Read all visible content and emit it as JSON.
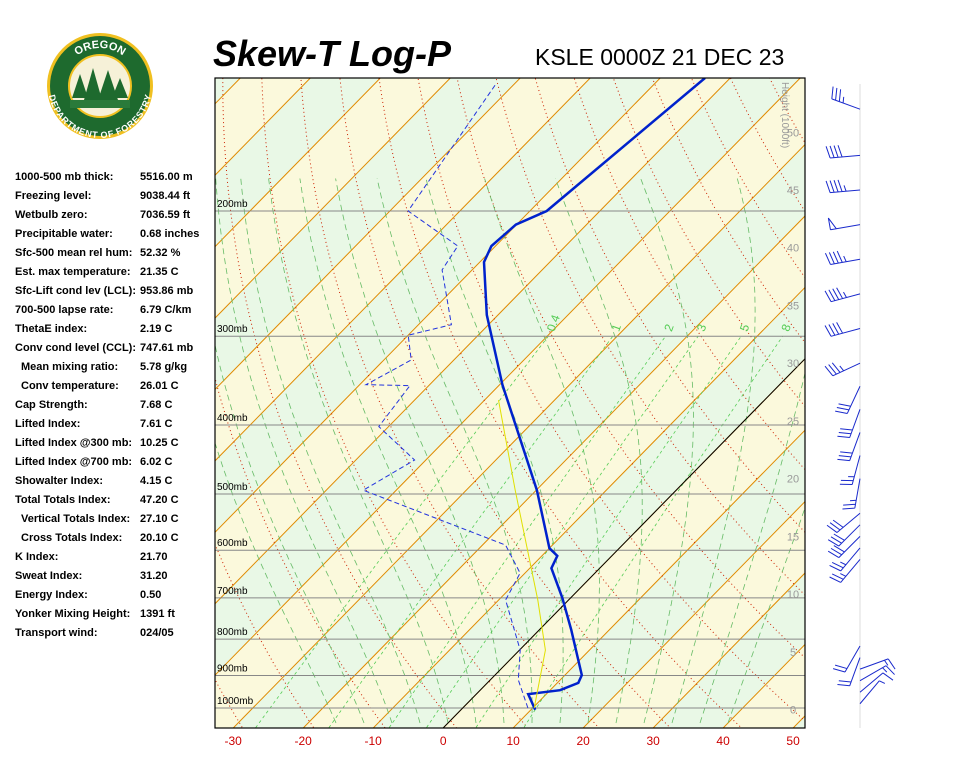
{
  "logo": {
    "top": "OREGON",
    "bottom": "DEPARTMENT OF FORESTRY"
  },
  "stats": [
    {
      "label": "1000-500 mb thick:",
      "value": "5516.00 m"
    },
    {
      "label": "Freezing level:",
      "value": "9038.44 ft"
    },
    {
      "label": "Wetbulb zero:",
      "value": "7036.59 ft"
    },
    {
      "label": "Precipitable water:",
      "value": "0.68 inches"
    },
    {
      "label": "Sfc-500 mean rel hum:",
      "value": "52.32 %"
    },
    {
      "label": "Est. max temperature:",
      "value": "21.35 C"
    },
    {
      "label": "Sfc-Lift cond lev (LCL):",
      "value": "953.86 mb"
    },
    {
      "label": "700-500 lapse rate:",
      "value": "6.79 C/km"
    },
    {
      "label": "ThetaE index:",
      "value": "2.19 C"
    },
    {
      "label": "Conv cond level (CCL):",
      "value": "747.61 mb"
    },
    {
      "label": "Mean mixing ratio:",
      "value": "5.78 g/kg"
    },
    {
      "label": "Conv temperature:",
      "value": "26.01 C"
    },
    {
      "label": "Cap Strength:",
      "value": "7.68 C"
    },
    {
      "label": "Lifted Index:",
      "value": "7.61 C"
    },
    {
      "label": "Lifted Index @300 mb:",
      "value": "10.25 C"
    },
    {
      "label": "Lifted Index @700 mb:",
      "value": "6.02 C"
    },
    {
      "label": "Showalter Index:",
      "value": "4.15 C"
    },
    {
      "label": "Total Totals Index:",
      "value": "47.20 C"
    },
    {
      "label": "Vertical Totals Index:",
      "value": "27.10 C"
    },
    {
      "label": "Cross Totals Index:",
      "value": "20.10 C"
    },
    {
      "label": "K Index:",
      "value": "21.70"
    },
    {
      "label": "Sweat Index:",
      "value": "31.20"
    },
    {
      "label": "Energy Index:",
      "value": "0.50"
    },
    {
      "label": "Yonker Mixing Height:",
      "value": "1391 ft"
    },
    {
      "label": "Transport wind:",
      "value": "024/05"
    }
  ],
  "chart_data": {
    "type": "skewt",
    "title": "Skew-T Log-P",
    "subtitle": "KSLE 0000Z 21 DEC 23",
    "xlim": [
      -32.6,
      51.7
    ],
    "xticks": [
      -30,
      -20,
      -10,
      0,
      10,
      20,
      30,
      40,
      50
    ],
    "ylim": [
      1067,
      130
    ],
    "log_scale": true,
    "yticks": [
      {
        "value": 200,
        "label": "200mb"
      },
      {
        "value": 300,
        "label": "300mb"
      },
      {
        "value": 400,
        "label": "400mb"
      },
      {
        "value": 500,
        "label": "500mb"
      },
      {
        "value": 600,
        "label": "600mb"
      },
      {
        "value": 700,
        "label": "700mb"
      },
      {
        "value": 800,
        "label": "800mb"
      },
      {
        "value": 900,
        "label": "900mb"
      },
      {
        "value": 1000,
        "label": "1000mb"
      }
    ],
    "height_label": "Height (1000ft)",
    "height_lim": [
      -1.6,
      54.7
    ],
    "height_ticks": [
      0,
      5,
      10,
      15,
      20,
      25,
      30,
      35,
      40,
      45,
      50
    ],
    "mixing_ratio_labels": [
      0.4,
      1,
      2,
      3,
      5,
      8
    ],
    "series": [
      {
        "color": "#0022cc",
        "style": "solid",
        "pressure": [
          1006,
          956,
          944,
          922,
          899,
          777,
          700,
          636,
          611,
          596,
          494,
          351,
          280,
          236,
          224,
          209,
          200,
          130
        ],
        "values": [
          10.6,
          7.4,
          11.4,
          13.0,
          12.4,
          4.6,
          -1.2,
          -6.9,
          -7.8,
          -10.0,
          -19.9,
          -39.6,
          -51.6,
          -59.4,
          -60.6,
          -60.1,
          -57.6,
          -53.6
        ]
      },
      {
        "color": "#2233dd",
        "style": "dashed",
        "pressure": [
          1000,
          913,
          829,
          705,
          646,
          590,
          494,
          448,
          402,
          352,
          351,
          324,
          299,
          289,
          242,
          224,
          200,
          133
        ],
        "values": [
          9.3,
          4.0,
          0.1,
          -9.0,
          -10.7,
          -16.7,
          -44.7,
          -41.6,
          -51.4,
          -52.7,
          -59.1,
          -56.1,
          -60.0,
          -55.3,
          -64.3,
          -65.4,
          -77.4,
          -82.6
        ]
      },
      {
        "color": "#e0e000",
        "style": "solid",
        "pressure": [
          1000,
          829,
          705,
          494,
          369
        ],
        "values": [
          10.2,
          3.7,
          -4.4,
          -23.0,
          -38.0
        ]
      }
    ],
    "winds": {
      "height": [
        0.5,
        1.5,
        2.5,
        3.5,
        4.5,
        5.5,
        13,
        14,
        15,
        16,
        17,
        20,
        22,
        24,
        26,
        28,
        30,
        33,
        36,
        39,
        42,
        45,
        48,
        52
      ],
      "speed": [
        5,
        10,
        15,
        15,
        20,
        20,
        25,
        25,
        30,
        30,
        30,
        25,
        25,
        30,
        30,
        30,
        35,
        40,
        45,
        45,
        50,
        45,
        40,
        35
      ],
      "direction": [
        40,
        50,
        60,
        70,
        200,
        210,
        220,
        220,
        225,
        225,
        230,
        190,
        195,
        200,
        200,
        205,
        245,
        255,
        255,
        260,
        260,
        265,
        265,
        290
      ]
    }
  }
}
